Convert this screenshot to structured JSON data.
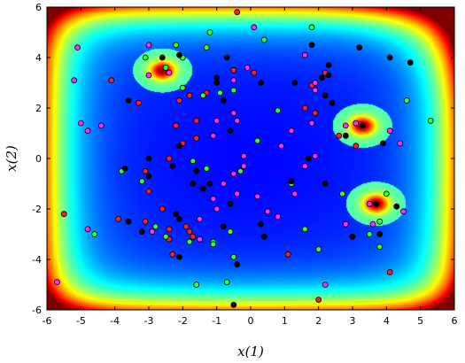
{
  "chart_data": {
    "type": "scatter",
    "title": "",
    "xlabel": "x(1)",
    "ylabel": "x(2)",
    "xlim": [
      -6,
      6
    ],
    "ylim": [
      -6,
      6
    ],
    "x_ticks": [
      "-6",
      "-5",
      "-4",
      "-3",
      "-2",
      "-1",
      "0",
      "1",
      "2",
      "3",
      "4",
      "5",
      "6"
    ],
    "y_ticks": [
      "-6",
      "-4",
      "-2",
      "0",
      "2",
      "4",
      "6"
    ],
    "grid": false,
    "background": {
      "type": "heatmap",
      "colormap": "jet",
      "peaks": [
        {
          "x": -2.6,
          "y": 3.5
        },
        {
          "x": 3.3,
          "y": 1.3
        },
        {
          "x": 3.7,
          "y": -1.8
        }
      ]
    },
    "series": [
      {
        "color": "#ff1e1e",
        "points": [
          [
            -0.4,
            5.8
          ],
          [
            -0.1,
            3.6
          ],
          [
            0.1,
            3.4
          ],
          [
            -1.3,
            2.6
          ],
          [
            -1.8,
            2.5
          ],
          [
            -2.1,
            2.3
          ],
          [
            -3.3,
            2.2
          ],
          [
            -2.2,
            1.3
          ],
          [
            -1.6,
            1.5
          ],
          [
            -1.6,
            0.8
          ],
          [
            -2,
            0.6
          ],
          [
            -2.4,
            0.0
          ],
          [
            -3.1,
            -0.5
          ],
          [
            -3,
            -1.3
          ],
          [
            -2.6,
            -2.0
          ],
          [
            -3.9,
            -2.4
          ],
          [
            -3.1,
            -2.5
          ],
          [
            -2.4,
            -2.8
          ],
          [
            -1.9,
            -2.7
          ],
          [
            -1.8,
            -2.9
          ],
          [
            -1.7,
            -3.1
          ],
          [
            -2.4,
            -3.2
          ],
          [
            -2.3,
            -3.8
          ],
          [
            1.1,
            -3.8
          ],
          [
            2.0,
            -5.6
          ],
          [
            -5.5,
            -2.2
          ],
          [
            -4.1,
            3.1
          ],
          [
            2.6,
            0.9
          ],
          [
            3.1,
            0.5
          ],
          [
            3.0,
            -3.1
          ],
          [
            4.1,
            -4.5
          ],
          [
            1.9,
            1.8
          ],
          [
            1.6,
            2.0
          ],
          [
            1.8,
            2.9
          ],
          [
            2.2,
            3.4
          ],
          [
            -0.5,
            3.5
          ]
        ]
      },
      {
        "color": "#ff2bff",
        "points": [
          [
            -5.1,
            4.4
          ],
          [
            -5.2,
            3.1
          ],
          [
            -5.0,
            1.4
          ],
          [
            -4.8,
            1.1
          ],
          [
            -4.4,
            1.3
          ],
          [
            -3.0,
            3.3
          ],
          [
            -2.4,
            3.4
          ],
          [
            -3.0,
            4.5
          ],
          [
            0.1,
            5.2
          ],
          [
            1.6,
            4.1
          ],
          [
            1.9,
            3.0
          ],
          [
            1.9,
            2.7
          ],
          [
            -0.1,
            3.6
          ],
          [
            -0.5,
            3.1
          ],
          [
            -0.5,
            1.8
          ],
          [
            -0.4,
            1.5
          ],
          [
            -1.0,
            1.5
          ],
          [
            -1.1,
            0.9
          ],
          [
            0.2,
            0.7
          ],
          [
            -0.2,
            0.1
          ],
          [
            -0.2,
            -0.3
          ],
          [
            -0.5,
            -0.6
          ],
          [
            -0.8,
            -1.0
          ],
          [
            -1.1,
            -1.6
          ],
          [
            -1.0,
            -2.0
          ],
          [
            -0.4,
            -1.4
          ],
          [
            0.2,
            -1.5
          ],
          [
            0.5,
            -2.1
          ],
          [
            0.8,
            -2.3
          ],
          [
            1.3,
            -1.4
          ],
          [
            1.6,
            -0.3
          ],
          [
            1.9,
            0.1
          ],
          [
            1.8,
            1.4
          ],
          [
            1.2,
            1.1
          ],
          [
            0.9,
            0.5
          ],
          [
            -1.5,
            -2.4
          ],
          [
            -2.9,
            -2.9
          ],
          [
            -5.7,
            -4.9
          ],
          [
            -4.8,
            -2.8
          ],
          [
            -1.8,
            -3.3
          ],
          [
            -1.5,
            -3.2
          ],
          [
            2.2,
            -5.0
          ],
          [
            2.8,
            -2.6
          ],
          [
            3.6,
            -2.6
          ],
          [
            2.8,
            1.3
          ],
          [
            3.1,
            1.4
          ],
          [
            3.5,
            -1.8
          ],
          [
            4.5,
            -2.1
          ],
          [
            4.4,
            0.6
          ],
          [
            4.1,
            1.1
          ]
        ]
      },
      {
        "color": "#30ff30",
        "points": [
          [
            -3.1,
            4.0
          ],
          [
            -2.5,
            3.6
          ],
          [
            -2.2,
            4.5
          ],
          [
            -2.0,
            4.0
          ],
          [
            -1.2,
            5.0
          ],
          [
            -1.3,
            4.4
          ],
          [
            0.4,
            4.7
          ],
          [
            1.8,
            5.2
          ],
          [
            -2.0,
            2.8
          ],
          [
            -1.4,
            2.5
          ],
          [
            -0.9,
            2.6
          ],
          [
            -0.5,
            2.7
          ],
          [
            0.3,
            3.0
          ],
          [
            0.8,
            1.9
          ],
          [
            -3.8,
            -0.5
          ],
          [
            -3.2,
            -0.9
          ],
          [
            -4.6,
            -3.0
          ],
          [
            -2.8,
            -2.7
          ],
          [
            -2.5,
            -3.1
          ],
          [
            -1.8,
            -3.3
          ],
          [
            -1.1,
            -3.3
          ],
          [
            -1.1,
            -3.4
          ],
          [
            -0.6,
            -2.9
          ],
          [
            -1.7,
            -0.1
          ],
          [
            -1.3,
            -0.4
          ],
          [
            -0.5,
            -3.9
          ],
          [
            -1.6,
            -5.0
          ],
          [
            -0.7,
            -4.9
          ],
          [
            0.2,
            0.7
          ],
          [
            -0.3,
            -0.5
          ],
          [
            1.2,
            -1.0
          ],
          [
            2.0,
            -3.6
          ],
          [
            1.6,
            -2.8
          ],
          [
            2.7,
            -1.4
          ],
          [
            3.8,
            -2.5
          ],
          [
            4.0,
            -1.4
          ],
          [
            4.6,
            2.3
          ],
          [
            5.3,
            1.5
          ],
          [
            3.5,
            -3.0
          ],
          [
            3.8,
            -3.5
          ]
        ]
      },
      {
        "color": "#000000",
        "points": [
          [
            -3.6,
            2.3
          ],
          [
            -2.6,
            4.0
          ],
          [
            -2.1,
            4.1
          ],
          [
            -1.0,
            3.0
          ],
          [
            -1.0,
            3.2
          ],
          [
            -0.7,
            4.0
          ],
          [
            -0.8,
            2.3
          ],
          [
            -0.6,
            1.1
          ],
          [
            0.3,
            3.0
          ],
          [
            1.3,
            3.0
          ],
          [
            1.8,
            4.5
          ],
          [
            2.1,
            3.2
          ],
          [
            2.3,
            3.3
          ],
          [
            2.2,
            2.5
          ],
          [
            2.4,
            2.2
          ],
          [
            2.3,
            3.7
          ],
          [
            3.2,
            4.4
          ],
          [
            4.1,
            4.0
          ],
          [
            4.7,
            3.8
          ],
          [
            3.3,
            1.3
          ],
          [
            3.9,
            0.6
          ],
          [
            1.7,
            0.0
          ],
          [
            1.2,
            -0.9
          ],
          [
            -3.0,
            0.0
          ],
          [
            -3.7,
            -0.4
          ],
          [
            -3.0,
            -0.7
          ],
          [
            -2.1,
            0.5
          ],
          [
            -2.3,
            -0.3
          ],
          [
            -1.6,
            -0.5
          ],
          [
            -1.7,
            -1.0
          ],
          [
            -1.2,
            -1.0
          ],
          [
            -1.4,
            -1.2
          ],
          [
            -0.6,
            -1.8
          ],
          [
            -0.8,
            -2.7
          ],
          [
            -2.2,
            -2.2
          ],
          [
            -2.1,
            -2.4
          ],
          [
            -2.1,
            -3.9
          ],
          [
            -0.4,
            -4.2
          ],
          [
            -0.5,
            -5.8
          ],
          [
            0.3,
            -2.6
          ],
          [
            0.4,
            -3.1
          ],
          [
            2.2,
            -1.0
          ],
          [
            3.0,
            -3.1
          ],
          [
            3.8,
            -3.0
          ],
          [
            4.3,
            -1.9
          ],
          [
            3.7,
            -1.8
          ],
          [
            -3.2,
            -2.9
          ],
          [
            -3.6,
            -2.5
          ],
          [
            2.8,
            0.9
          ]
        ]
      }
    ]
  }
}
